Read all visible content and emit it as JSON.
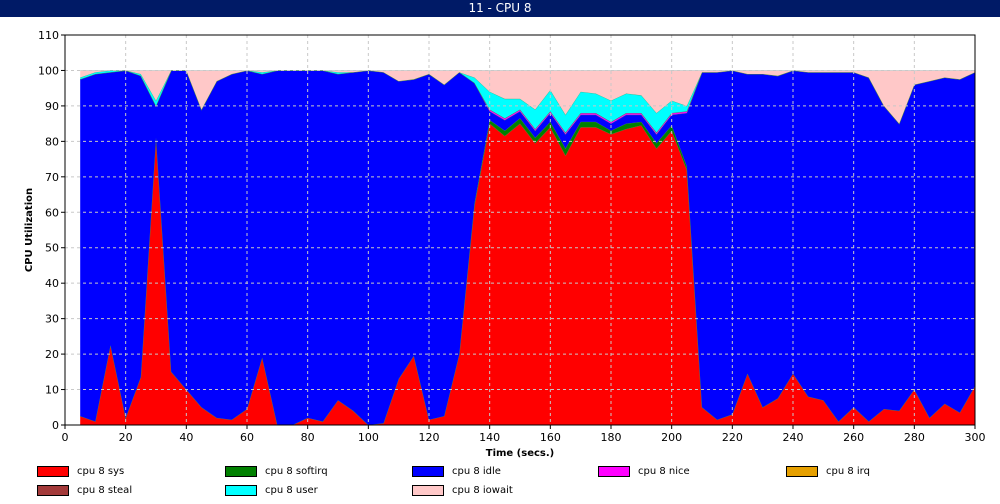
{
  "window": {
    "title": "11 - CPU 8"
  },
  "chart_data": {
    "type": "area",
    "stacked": true,
    "title": "",
    "xlabel": "Time (secs.)",
    "ylabel": "CPU Utilization",
    "xlim": [
      0,
      300
    ],
    "ylim": [
      0,
      110
    ],
    "xticks": [
      0,
      20,
      40,
      60,
      80,
      100,
      120,
      140,
      160,
      180,
      200,
      220,
      240,
      260,
      280,
      300
    ],
    "yticks": [
      0,
      10,
      20,
      30,
      40,
      50,
      60,
      70,
      80,
      90,
      100,
      110
    ],
    "grid": true,
    "legend_position": "bottom",
    "x": [
      5,
      10,
      15,
      20,
      25,
      30,
      35,
      40,
      45,
      50,
      55,
      60,
      65,
      70,
      75,
      80,
      85,
      90,
      95,
      100,
      105,
      110,
      115,
      120,
      125,
      130,
      135,
      140,
      145,
      150,
      155,
      160,
      165,
      170,
      175,
      180,
      185,
      190,
      195,
      200,
      205,
      210,
      215,
      220,
      225,
      230,
      235,
      240,
      245,
      250,
      255,
      260,
      265,
      270,
      275,
      280,
      285,
      290,
      295,
      300
    ],
    "series": [
      {
        "name": "cpu 8 sys",
        "color": "#ff0000",
        "values": [
          2.5,
          1,
          22.5,
          2,
          13.5,
          81,
          15,
          10,
          5,
          2,
          1.5,
          4.5,
          19,
          0,
          0,
          2,
          1,
          7,
          4,
          0,
          0.5,
          13,
          19.5,
          1.5,
          2.5,
          20,
          62,
          85,
          81.5,
          85,
          79.5,
          84,
          76,
          84,
          84,
          82,
          83.5,
          84.5,
          78,
          83,
          72,
          5,
          1.5,
          3,
          14.5,
          5,
          7.5,
          14.5,
          8,
          7,
          1,
          5,
          1,
          4.5,
          4,
          10,
          2,
          6,
          3.5,
          11
        ]
      },
      {
        "name": "cpu 8 softirq",
        "color": "#008000",
        "values": [
          0,
          0,
          0,
          0,
          0,
          0,
          0,
          0,
          0,
          0,
          0,
          0,
          0,
          0,
          0,
          0,
          0,
          0,
          0,
          0,
          0,
          0,
          0,
          0,
          0,
          0,
          0.5,
          1,
          1.5,
          1.5,
          1.5,
          1.5,
          2,
          1.5,
          1.5,
          1,
          1.5,
          1,
          1.5,
          1.5,
          1,
          0,
          0,
          0,
          0,
          0,
          0,
          0,
          0,
          0,
          0,
          0,
          0,
          0,
          0,
          0,
          0,
          0,
          0,
          0
        ]
      },
      {
        "name": "cpu 8 idle",
        "color": "#0000ff",
        "values": [
          95,
          98,
          77,
          98,
          85,
          9,
          85,
          90,
          84,
          95,
          97.5,
          95.5,
          80,
          100,
          100,
          98,
          99,
          92,
          95.5,
          100,
          99,
          84,
          78,
          97.5,
          93.5,
          79.5,
          34,
          2.5,
          3,
          2,
          2,
          2.5,
          4,
          2,
          2,
          2,
          2.5,
          2,
          2.5,
          3,
          15,
          94.5,
          98,
          97,
          84.5,
          94,
          91,
          85.5,
          91.5,
          92.5,
          98.5,
          94.5,
          97,
          85.5,
          81,
          86,
          95,
          92,
          94,
          88.5
        ]
      },
      {
        "name": "cpu 8 nice",
        "color": "#ff00ff",
        "values": [
          0,
          0,
          0,
          0,
          0,
          0,
          0,
          0,
          0,
          0,
          0,
          0,
          0,
          0,
          0,
          0,
          0,
          0,
          0,
          0,
          0,
          0,
          0,
          0,
          0,
          0,
          0,
          0.5,
          0.5,
          0.5,
          0.5,
          0.5,
          0.5,
          0.5,
          0.5,
          0.5,
          0.5,
          0.5,
          0.5,
          0.5,
          0.5,
          0,
          0,
          0,
          0,
          0,
          0,
          0,
          0,
          0,
          0,
          0,
          0,
          0,
          0,
          0,
          0,
          0,
          0,
          0
        ]
      },
      {
        "name": "cpu 8 irq",
        "color": "#e6a000",
        "values": [
          0,
          0,
          0,
          0,
          0,
          0,
          0,
          0,
          0,
          0,
          0,
          0,
          0,
          0,
          0,
          0,
          0,
          0,
          0,
          0,
          0,
          0,
          0,
          0,
          0,
          0,
          0,
          0,
          0,
          0,
          0,
          0,
          0,
          0,
          0,
          0,
          0,
          0,
          0,
          0,
          0,
          0,
          0,
          0,
          0,
          0,
          0,
          0,
          0,
          0,
          0,
          0,
          0,
          0,
          0,
          0,
          0,
          0,
          0,
          0
        ]
      },
      {
        "name": "cpu 8 steal",
        "color": "#a33a3a",
        "values": [
          0,
          0,
          0,
          0,
          0,
          0,
          0,
          0,
          0,
          0,
          0,
          0,
          0,
          0,
          0,
          0,
          0,
          0,
          0,
          0,
          0,
          0,
          0,
          0,
          0,
          0,
          0,
          0,
          0,
          0,
          0,
          0,
          0,
          0,
          0,
          0,
          0,
          0,
          0,
          0,
          0,
          0,
          0,
          0,
          0,
          0,
          0,
          0,
          0,
          0,
          0,
          0,
          0,
          0,
          0,
          0,
          0,
          0,
          0,
          0
        ]
      },
      {
        "name": "cpu 8 user",
        "color": "#00ffff",
        "values": [
          0.5,
          0.5,
          0.5,
          0,
          0.5,
          1.5,
          0,
          0,
          0,
          0,
          0,
          0,
          0.5,
          0,
          0,
          0,
          0,
          0.5,
          0,
          0,
          0,
          0,
          0,
          0,
          0,
          0,
          1.5,
          5,
          5.5,
          3,
          5.5,
          6,
          5,
          6,
          5.5,
          6,
          5.5,
          5,
          5.5,
          3.5,
          1.5,
          0,
          0,
          0,
          0,
          0,
          0,
          0,
          0,
          0,
          0,
          0,
          0,
          0,
          0,
          0,
          0,
          0,
          0,
          0
        ]
      },
      {
        "name": "cpu 8 iowait",
        "color": "#ffc8c8",
        "values": [
          2,
          0.5,
          0,
          0,
          1,
          8.5,
          0,
          0,
          11,
          3,
          1,
          0,
          0.5,
          0,
          0,
          0,
          0,
          0.5,
          0.5,
          0,
          0.5,
          3,
          2.5,
          1,
          4,
          0.5,
          2,
          6,
          8,
          8,
          11,
          5.5,
          12.5,
          6,
          6.5,
          8.5,
          6.5,
          7,
          12,
          8.5,
          10,
          0.5,
          0.5,
          0,
          1,
          1,
          1.5,
          0,
          0.5,
          0.5,
          0.5,
          0.5,
          2,
          10,
          15,
          4,
          3,
          2,
          2.5,
          0.5
        ]
      }
    ]
  }
}
